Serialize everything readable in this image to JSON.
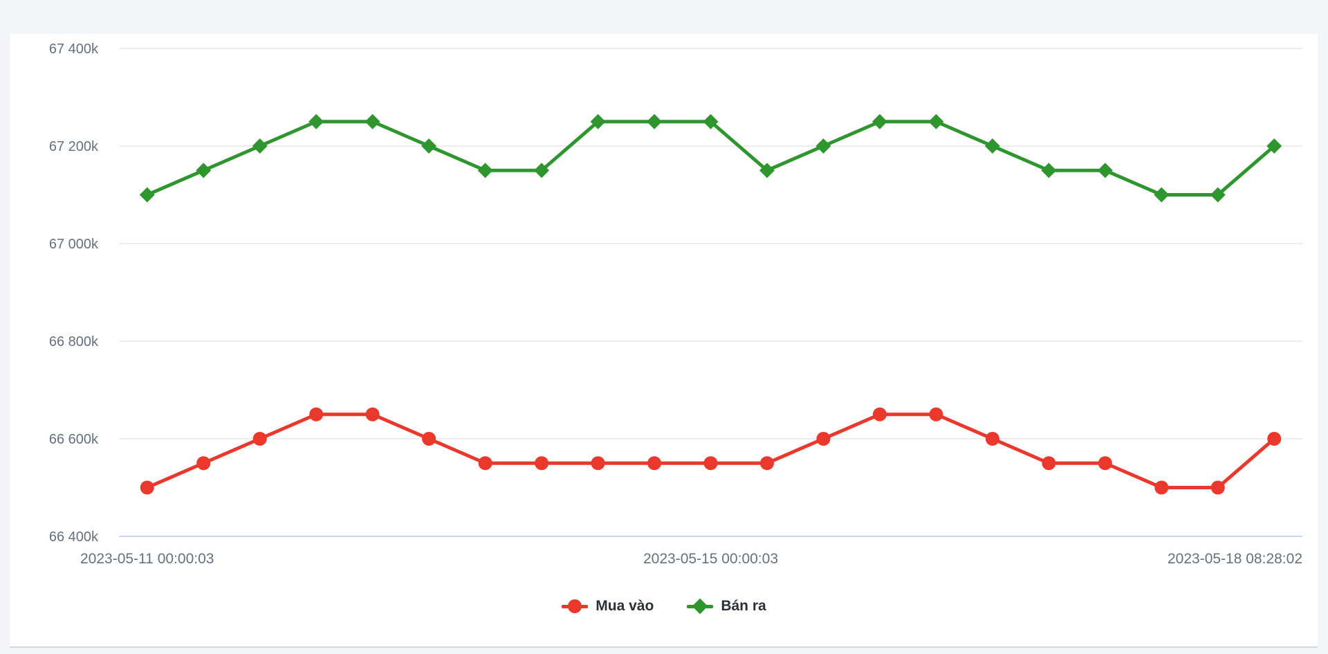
{
  "page": {
    "background": "#f4f5f8",
    "panel_background": "#ffffff",
    "axis_label_color": "#65707d",
    "gridline_color": "#e7e7e7",
    "axis_line_color": "#ccd6eb"
  },
  "chart_data": {
    "type": "line",
    "title": "",
    "xlabel": "",
    "ylabel": "",
    "grid": true,
    "legend_position": "bottom",
    "point_count": 21,
    "ylim": [
      66400,
      67400
    ],
    "y_ticks": [
      {
        "value": 67400,
        "label": "67 400k"
      },
      {
        "value": 67200,
        "label": "67 200k"
      },
      {
        "value": 67000,
        "label": "67 000k"
      },
      {
        "value": 66800,
        "label": "66 800k"
      },
      {
        "value": 66600,
        "label": "66 600k"
      },
      {
        "value": 66400,
        "label": "66 400k"
      }
    ],
    "x_ticks": [
      {
        "label": "2023-05-11 00:00:03",
        "index": 0
      },
      {
        "label": "2023-05-15 00:00:03",
        "index": 10
      },
      {
        "label": "2023-05-18 08:28:02",
        "index": 20
      }
    ],
    "series": [
      {
        "name": "Mua vào",
        "color": "#ea382d",
        "marker": "circle",
        "values": [
          66500,
          66550,
          66600,
          66650,
          66650,
          66600,
          66550,
          66550,
          66550,
          66550,
          66550,
          66550,
          66600,
          66650,
          66650,
          66600,
          66550,
          66550,
          66500,
          66500,
          66600
        ]
      },
      {
        "name": "Bán ra",
        "color": "#2f962f",
        "marker": "diamond",
        "values": [
          67100,
          67150,
          67200,
          67250,
          67250,
          67200,
          67150,
          67150,
          67250,
          67250,
          67250,
          67150,
          67200,
          67250,
          67250,
          67200,
          67150,
          67150,
          67100,
          67100,
          67200
        ]
      }
    ]
  },
  "legend": {
    "items": [
      {
        "label": "Mua vào",
        "color": "#ea382d",
        "marker": "circle"
      },
      {
        "label": "Bán ra",
        "color": "#2f962f",
        "marker": "diamond"
      }
    ]
  }
}
